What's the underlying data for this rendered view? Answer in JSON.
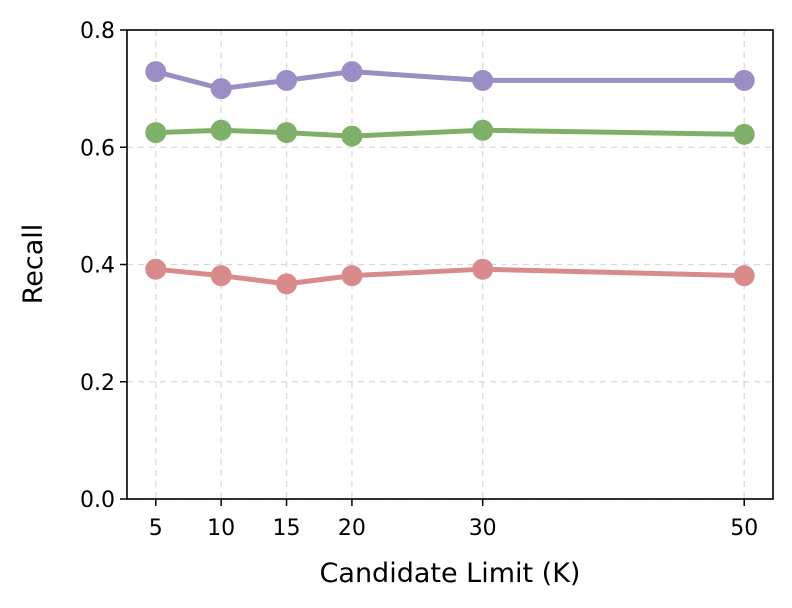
{
  "chart_data": {
    "type": "line",
    "title": "",
    "xlabel": "Candidate Limit (K)",
    "ylabel": "Recall",
    "x": [
      5,
      10,
      15,
      20,
      30,
      50
    ],
    "xticks": [
      "5",
      "10",
      "15",
      "20",
      "30",
      "50"
    ],
    "yticks": [
      "0.0",
      "0.2",
      "0.4",
      "0.6",
      "0.8"
    ],
    "xlim": [
      2.8,
      52.2
    ],
    "ylim": [
      0.0,
      0.8
    ],
    "grid": true,
    "series": [
      {
        "color": "#9b8ec4",
        "values": [
          0.729,
          0.7,
          0.714,
          0.729,
          0.714,
          0.714
        ]
      },
      {
        "color": "#7fb069",
        "values": [
          0.625,
          0.629,
          0.625,
          0.619,
          0.629,
          0.622
        ]
      },
      {
        "color": "#d98b8b",
        "values": [
          0.392,
          0.381,
          0.367,
          0.381,
          0.392,
          0.381
        ]
      }
    ]
  }
}
